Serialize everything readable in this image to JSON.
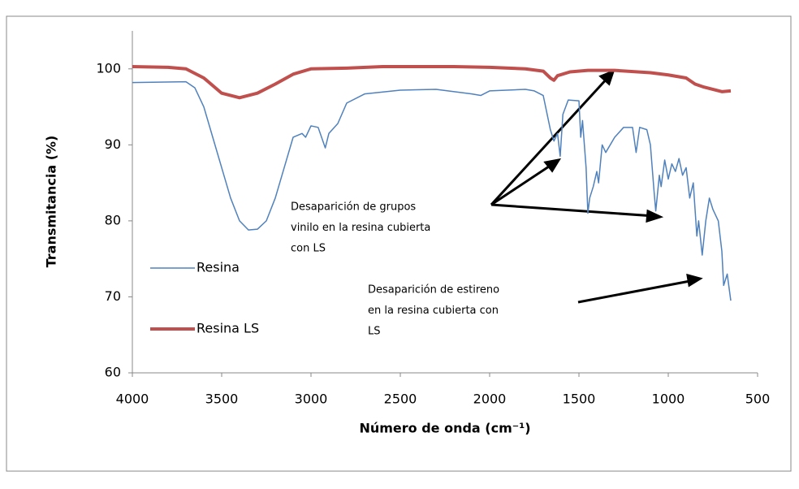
{
  "chart_data": {
    "type": "line",
    "xlabel": "Número de onda (cm⁻¹)",
    "ylabel": "Transmitancia (%)",
    "xlim": [
      4000,
      500
    ],
    "xticks": [
      4000,
      3500,
      3000,
      2500,
      2000,
      1500,
      1000,
      500
    ],
    "ylim": [
      60,
      105
    ],
    "yticks": [
      60,
      70,
      80,
      90,
      100
    ],
    "grid": false,
    "legend": "left",
    "series": [
      {
        "name": "Resina",
        "color": "#4f81bd",
        "x": [
          4000,
          3700,
          3650,
          3600,
          3550,
          3500,
          3450,
          3400,
          3350,
          3300,
          3250,
          3200,
          3150,
          3100,
          3050,
          3030,
          3000,
          2960,
          2920,
          2900,
          2850,
          2800,
          2700,
          2500,
          2300,
          2100,
          2050,
          2000,
          1800,
          1750,
          1700,
          1660,
          1640,
          1620,
          1605,
          1590,
          1560,
          1500,
          1490,
          1480,
          1460,
          1450,
          1440,
          1420,
          1400,
          1390,
          1370,
          1350,
          1300,
          1250,
          1200,
          1180,
          1160,
          1120,
          1100,
          1080,
          1070,
          1050,
          1040,
          1020,
          1000,
          980,
          960,
          940,
          920,
          900,
          880,
          860,
          840,
          830,
          810,
          790,
          770,
          750,
          720,
          700,
          690,
          670,
          650
        ],
        "values": [
          98.2,
          98.3,
          97.5,
          95,
          91,
          87,
          83,
          80,
          78.8,
          78.9,
          80,
          83,
          87,
          91,
          91.5,
          91,
          92.5,
          92.3,
          89.6,
          91.5,
          92.8,
          95.5,
          96.7,
          97.2,
          97.3,
          96.7,
          96.5,
          97.1,
          97.3,
          97.1,
          96.5,
          92,
          90.5,
          91.5,
          88.5,
          94,
          95.9,
          95.8,
          91,
          93.2,
          87,
          81,
          83,
          84.5,
          86.5,
          85,
          90,
          89,
          91,
          92.3,
          92.3,
          89,
          92.3,
          92,
          90,
          84,
          81.3,
          86,
          84.5,
          88,
          85.5,
          87.5,
          86.5,
          88.2,
          86,
          87,
          83,
          85,
          78,
          80,
          75.5,
          80,
          83,
          81.5,
          80,
          76,
          71.5,
          73,
          69.5
        ]
      },
      {
        "name": "Resina LS",
        "color": "#c0504d",
        "x": [
          4000,
          3800,
          3700,
          3600,
          3500,
          3400,
          3300,
          3200,
          3100,
          3000,
          2800,
          2600,
          2200,
          2000,
          1800,
          1700,
          1660,
          1640,
          1620,
          1550,
          1450,
          1300,
          1100,
          1000,
          900,
          850,
          800,
          700,
          650
        ],
        "values": [
          100.3,
          100.2,
          100,
          98.8,
          96.8,
          96.2,
          96.8,
          98,
          99.3,
          100,
          100.1,
          100.3,
          100.3,
          100.2,
          100,
          99.7,
          98.8,
          98.5,
          99.1,
          99.6,
          99.8,
          99.8,
          99.5,
          99.2,
          98.8,
          98,
          97.6,
          97,
          97.1
        ]
      }
    ],
    "annotations": [
      {
        "lines": [
          "Desaparición de grupos",
          "vinilo en la resina cubierta",
          "con LS"
        ]
      },
      {
        "lines": [
          "Desaparición de estireno",
          "en la resina cubierta con",
          "LS"
        ]
      }
    ]
  }
}
